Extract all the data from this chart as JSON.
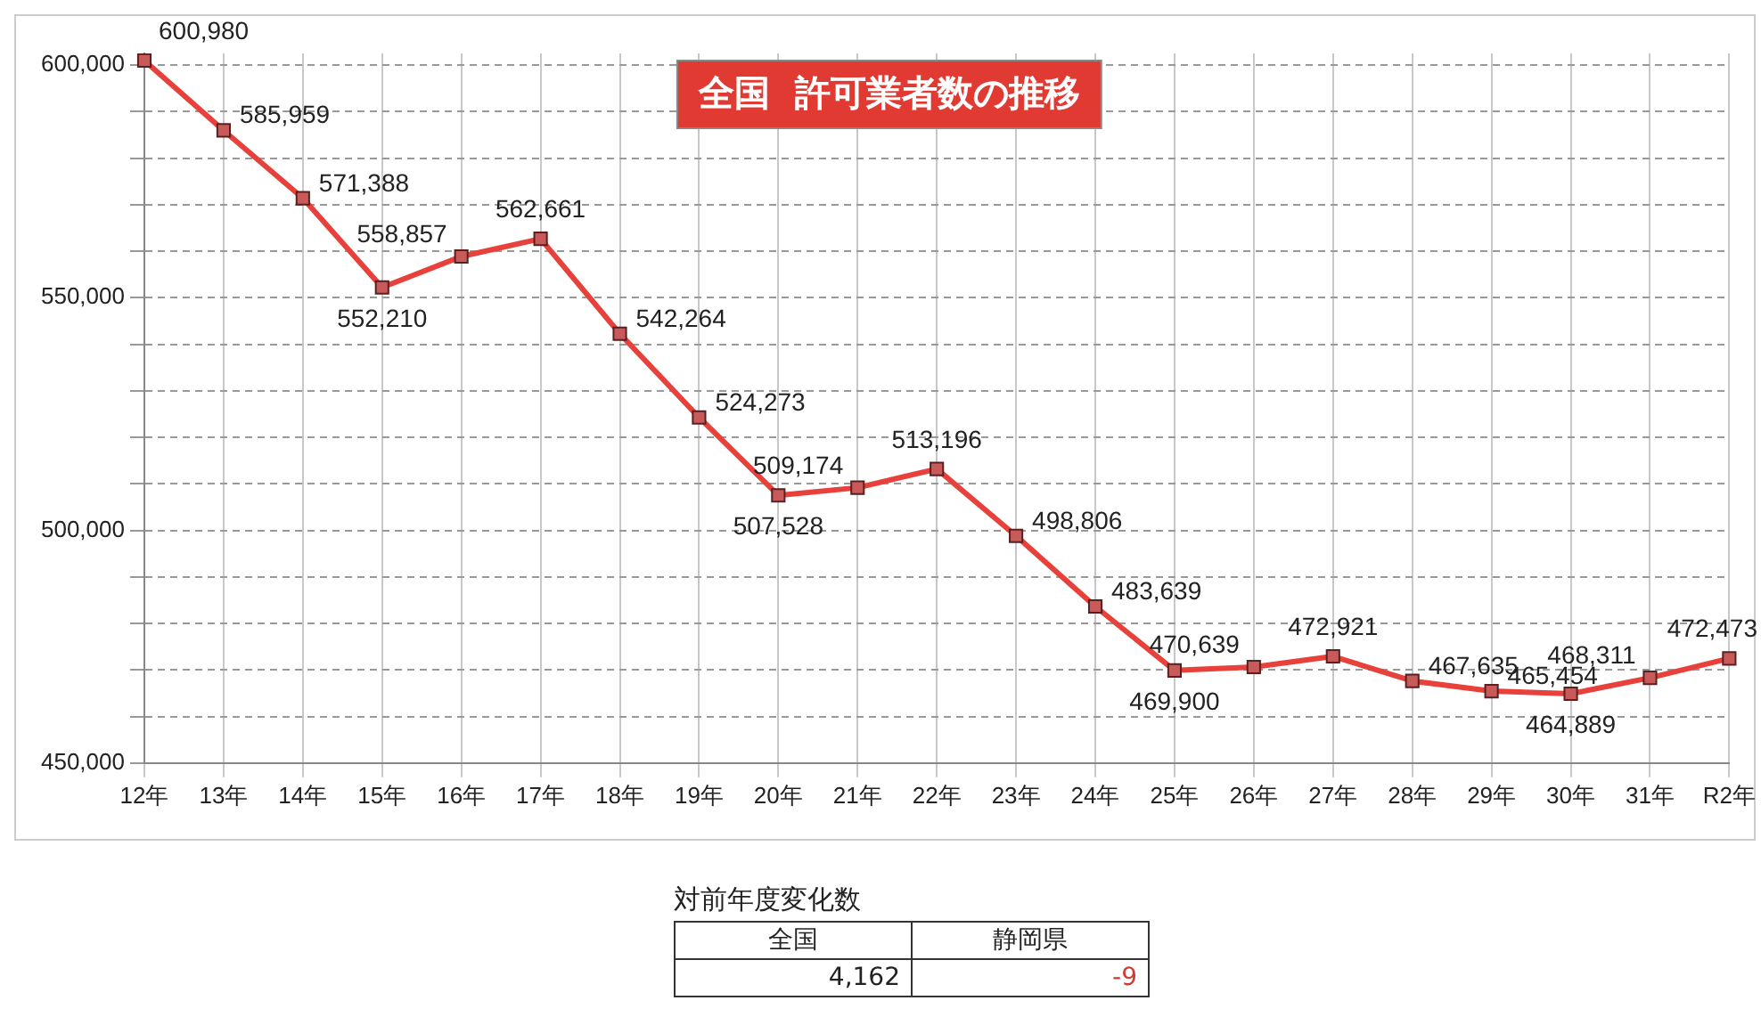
{
  "chart_data": {
    "type": "line",
    "title": "全国  許可業者数の推移",
    "categories": [
      "12年",
      "13年",
      "14年",
      "15年",
      "16年",
      "17年",
      "18年",
      "19年",
      "20年",
      "21年",
      "22年",
      "23年",
      "24年",
      "25年",
      "26年",
      "27年",
      "28年",
      "29年",
      "30年",
      "31年",
      "R2年"
    ],
    "series": [
      {
        "color": "#e8403a",
        "values": [
          600980,
          585959,
          571388,
          552210,
          558857,
          562661,
          542264,
          524273,
          507528,
          509174,
          513196,
          498806,
          483639,
          469900,
          470639,
          472921,
          467635,
          465454,
          464889,
          468311,
          472473
        ],
        "value_labels": [
          "600,980",
          "585,959",
          "571,388",
          "552,210",
          "558,857",
          "562,661",
          "542,264",
          "524,273",
          "507,528",
          "509,174",
          "513,196",
          "498,806",
          "483,639",
          "469,900",
          "470,639",
          "472,921",
          "467,635",
          "465,454",
          "464,889",
          "468,311",
          "472,473"
        ]
      }
    ],
    "ylim": [
      450000,
      602500
    ],
    "yticks": [
      {
        "value": 450000,
        "label": "450,000"
      },
      {
        "value": 460000,
        "label": null
      },
      {
        "value": 470000,
        "label": null
      },
      {
        "value": 480000,
        "label": null
      },
      {
        "value": 490000,
        "label": null
      },
      {
        "value": 500000,
        "label": "500,000"
      },
      {
        "value": 510000,
        "label": null
      },
      {
        "value": 520000,
        "label": null
      },
      {
        "value": 530000,
        "label": null
      },
      {
        "value": 540000,
        "label": null
      },
      {
        "value": 550000,
        "label": "550,000"
      },
      {
        "value": 560000,
        "label": null
      },
      {
        "value": 570000,
        "label": null
      },
      {
        "value": 580000,
        "label": null
      },
      {
        "value": 590000,
        "label": null
      },
      {
        "value": 600000,
        "label": "600,000"
      }
    ],
    "grid": true,
    "legend": false,
    "marker": "square",
    "line_style": "solid",
    "annotations": [
      "対前年度変化数",
      "全国",
      "静岡県",
      "4,162",
      "-9"
    ]
  }
}
